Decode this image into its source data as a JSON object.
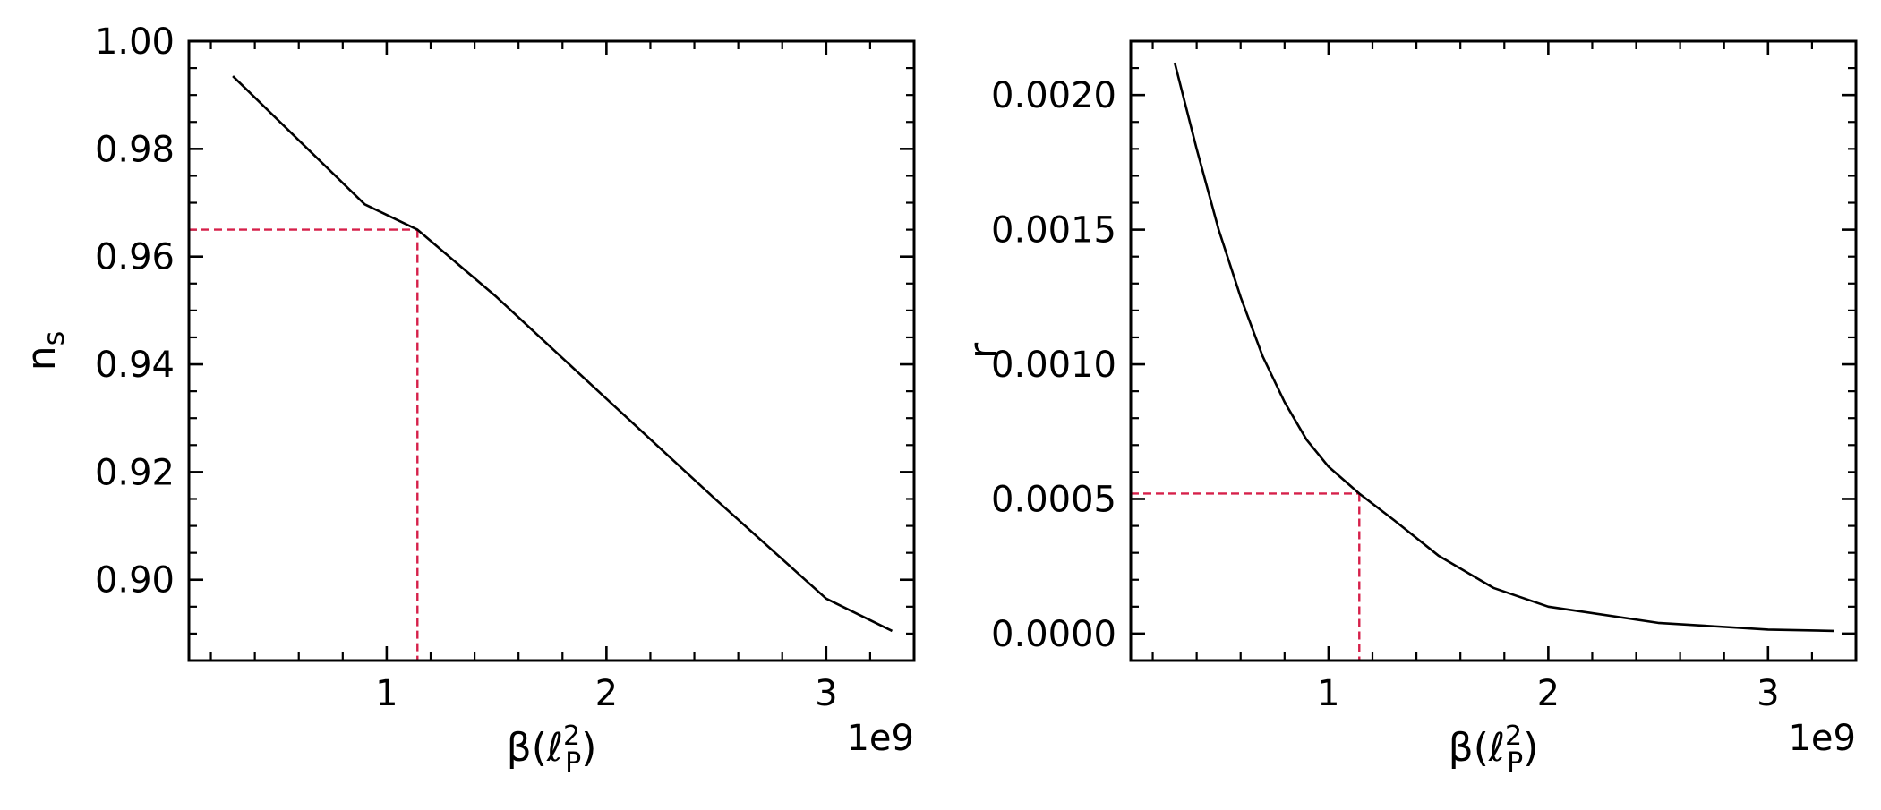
{
  "colors": {
    "curve": "#000000",
    "reference": "#d6204a",
    "axes": "#000000",
    "background": "#ffffff"
  },
  "chart_data": [
    {
      "type": "line",
      "title": "",
      "xlabel_main": "β(ℓ",
      "xlabel_sup": "2",
      "xlabel_sub": "P",
      "xlabel_close": ")",
      "xlabel_text": "β(ℓP2)",
      "ylabel_main": "n",
      "ylabel_sub": "s",
      "ylabel_text": "ns",
      "x_offset_label": "1e9",
      "x_scale": 1000000000,
      "xlim": [
        0.1,
        3.4
      ],
      "ylim": [
        0.885,
        1.0
      ],
      "xticks": [
        1,
        2,
        3
      ],
      "xtick_labels": [
        "1",
        "2",
        "3"
      ],
      "yticks": [
        0.9,
        0.92,
        0.94,
        0.96,
        0.98,
        1.0
      ],
      "ytick_labels": [
        "0.90",
        "0.92",
        "0.94",
        "0.96",
        "0.98",
        "1.00"
      ],
      "x_minor_step": 0.2,
      "y_minor_step": 0.005,
      "series": [
        {
          "x": [
            0.3,
            0.6,
            0.9,
            1.14,
            1.5,
            2.0,
            2.5,
            3.0,
            3.3
          ],
          "y": [
            0.9935,
            0.9816,
            0.9697,
            0.965,
            0.9525,
            0.9336,
            0.9148,
            0.8965,
            0.8905
          ]
        }
      ],
      "reference": {
        "x": 1.14,
        "y": 0.965
      },
      "grid": false,
      "legend": "none"
    },
    {
      "type": "line",
      "title": "",
      "xlabel_main": "β(ℓ",
      "xlabel_sup": "2",
      "xlabel_sub": "P",
      "xlabel_close": ")",
      "xlabel_text": "β(ℓP2)",
      "ylabel_main": "r",
      "ylabel_sub": "",
      "ylabel_text": "r",
      "x_offset_label": "1e9",
      "x_scale": 1000000000,
      "xlim": [
        0.1,
        3.4
      ],
      "ylim": [
        -0.0001,
        0.0022
      ],
      "xticks": [
        1,
        2,
        3
      ],
      "xtick_labels": [
        "1",
        "2",
        "3"
      ],
      "yticks": [
        0.0,
        0.0005,
        0.001,
        0.0015,
        0.002
      ],
      "ytick_labels": [
        "0.0000",
        "0.0005",
        "0.0010",
        "0.0015",
        "0.0020"
      ],
      "x_minor_step": 0.2,
      "y_minor_step": 0.0001,
      "series": [
        {
          "x": [
            0.3,
            0.4,
            0.5,
            0.6,
            0.7,
            0.8,
            0.9,
            1.0,
            1.14,
            1.3,
            1.5,
            1.75,
            2.0,
            2.5,
            3.0,
            3.3
          ],
          "y": [
            0.00212,
            0.0018,
            0.0015,
            0.00125,
            0.00103,
            0.00086,
            0.00072,
            0.00062,
            0.00052,
            0.00042,
            0.00029,
            0.00017,
            0.0001,
            4e-05,
            1.5e-05,
            1e-05
          ]
        }
      ],
      "reference": {
        "x": 1.14,
        "y": 0.00052
      },
      "grid": false,
      "legend": "none"
    }
  ]
}
